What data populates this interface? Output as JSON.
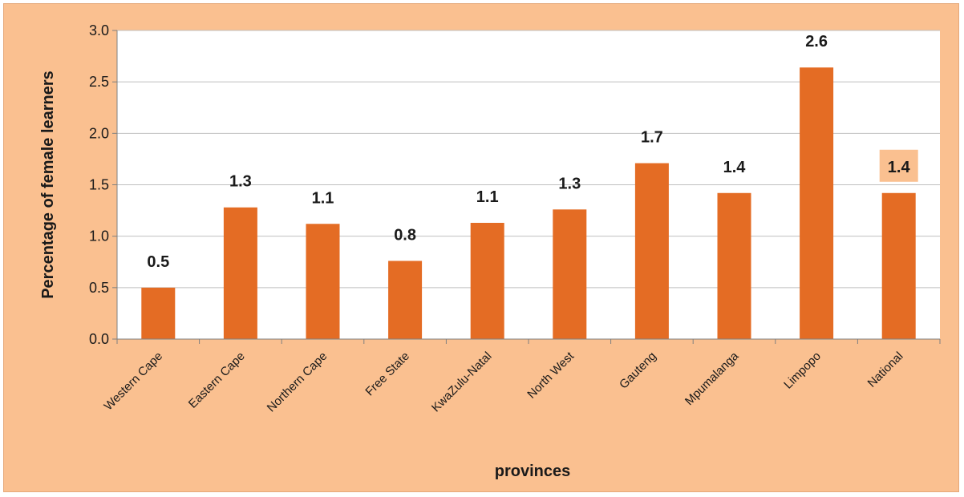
{
  "colors": {
    "background": "#fac090",
    "plot_area": "#ffffff",
    "bar": "#e46c24",
    "gridline": "#c0c0c0",
    "highlight_label_bg": "#fac090"
  },
  "chart_data": {
    "type": "bar",
    "title": "",
    "xlabel": "provinces",
    "ylabel": "Percentage of female learners",
    "ylim": [
      0,
      3.0
    ],
    "yticks": [
      "0.0",
      "0.5",
      "1.0",
      "1.5",
      "2.0",
      "2.5",
      "3.0"
    ],
    "grid": true,
    "legend": "none",
    "categories": [
      "Western Cape",
      "Eastern Cape",
      "Northern Cape",
      "Free State",
      "KwaZulu-Natal",
      "North West",
      "Gauteng",
      "Mpumalanga",
      "Limpopo",
      "National"
    ],
    "values": [
      0.5,
      1.28,
      1.12,
      0.76,
      1.13,
      1.26,
      1.71,
      1.42,
      2.64,
      1.42
    ],
    "data_labels": [
      "0.5",
      "1.3",
      "1.1",
      "0.8",
      "1.1",
      "1.3",
      "1.7",
      "1.4",
      "2.6",
      "1.4"
    ],
    "highlighted_label_index": 9
  }
}
